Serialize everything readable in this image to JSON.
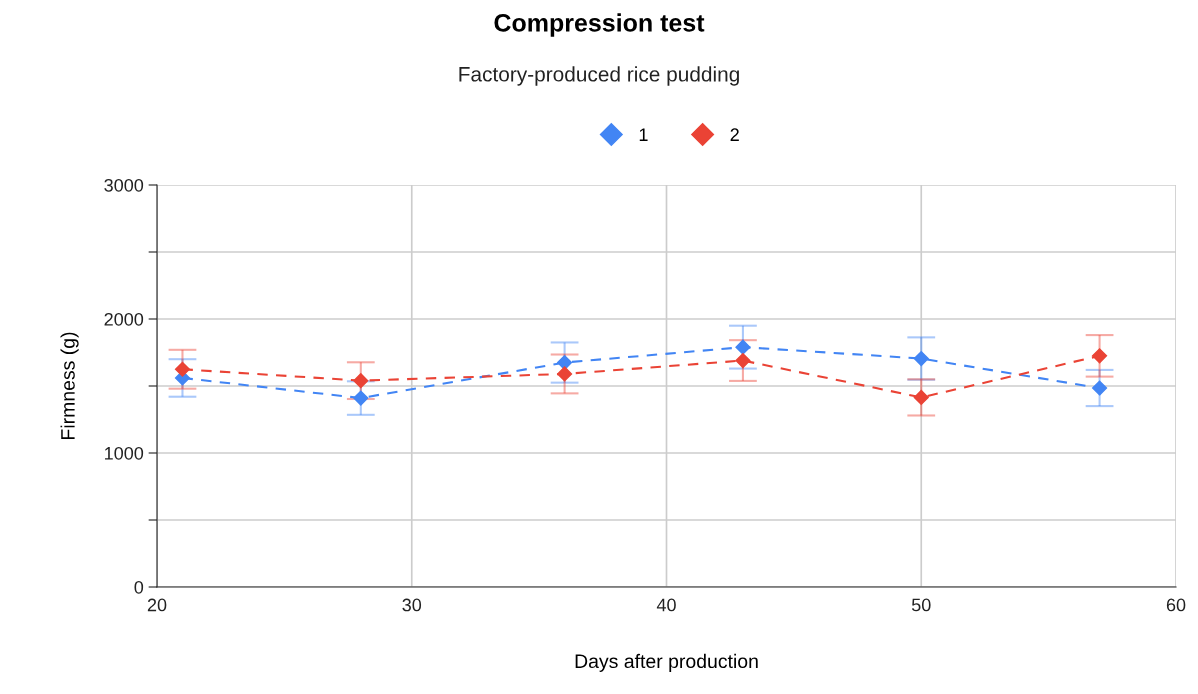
{
  "chart_data": {
    "type": "line",
    "title": "Compression test",
    "subtitle": "Factory-produced rice pudding",
    "xlabel": "Days after production",
    "ylabel": "Firmness (g)",
    "x": [
      21,
      28,
      36,
      43,
      50,
      57
    ],
    "series": [
      {
        "name": "1",
        "color": "#4285f4",
        "values": [
          1560,
          1410,
          1675,
          1790,
          1705,
          1485
        ],
        "errors": [
          140,
          125,
          150,
          160,
          158,
          135
        ]
      },
      {
        "name": "2",
        "color": "#ea4335",
        "values": [
          1625,
          1540,
          1590,
          1690,
          1415,
          1725
        ],
        "errors": [
          145,
          137,
          145,
          152,
          135,
          155
        ]
      }
    ],
    "xlim": [
      20,
      60
    ],
    "xticks": [
      20,
      30,
      40,
      50,
      60
    ],
    "ylim": [
      0,
      3000
    ],
    "yticks": [
      0,
      {
        "value": 500,
        "label": null
      },
      1000,
      {
        "value": 1500,
        "label": null
      },
      2000,
      {
        "value": 2500,
        "label": null
      },
      3000
    ],
    "grid": true,
    "legend": "top",
    "marker": "diamond",
    "line_style": "dashed"
  }
}
